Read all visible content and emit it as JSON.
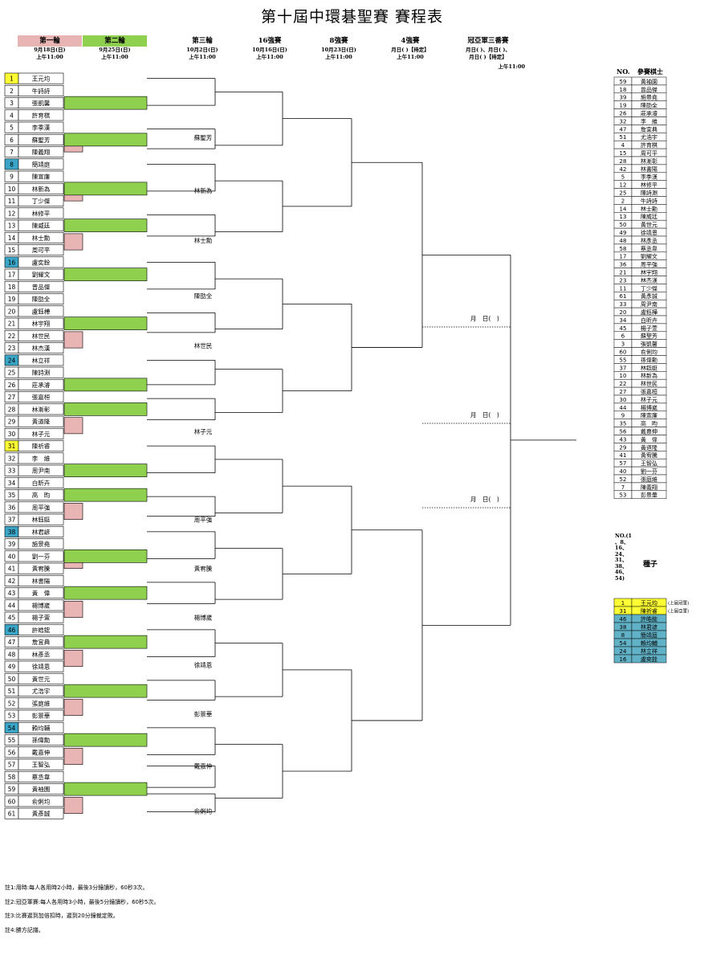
{
  "title": "第十屆中環碁聖賽 賽程表",
  "rounds": [
    {
      "label": "第一輪",
      "date": "9月18日(日)",
      "time": "上午11:00",
      "color": "#e8b4b4"
    },
    {
      "label": "第二輪",
      "date": "9月25日(日)",
      "time": "上午11:00",
      "color": "#8fd14f"
    },
    {
      "label": "第三輪",
      "date": "10月2日(日)",
      "time": "上午11:00",
      "color": ""
    },
    {
      "label": "16強賽",
      "date": "10月16日(日)",
      "time": "上午11:00",
      "color": ""
    },
    {
      "label": "8強賽",
      "date": "10月23日(日)",
      "time": "上午11:00",
      "color": ""
    },
    {
      "label": "4強賽",
      "date": "月日( )【待定】",
      "time": "上午11:00",
      "color": ""
    },
    {
      "label": "冠亞軍三番賽",
      "date": "月日( )、月日( )、",
      "time": "月日( )【待定】",
      "time2": "上午11:00",
      "color": ""
    }
  ],
  "players": [
    {
      "no": "1",
      "name": "王元均",
      "seed": "yellow"
    },
    {
      "no": "2",
      "name": "牛詩詩",
      "seed": ""
    },
    {
      "no": "3",
      "name": "張凱馨",
      "seed": ""
    },
    {
      "no": "4",
      "name": "許育棋",
      "seed": ""
    },
    {
      "no": "5",
      "name": "李季漢",
      "seed": ""
    },
    {
      "no": "6",
      "name": "蘇聖芳",
      "seed": ""
    },
    {
      "no": "7",
      "name": "陳義翔",
      "seed": ""
    },
    {
      "no": "8",
      "name": "簡靖庭",
      "seed": "blue"
    },
    {
      "no": "9",
      "name": "陳宣廉",
      "seed": ""
    },
    {
      "no": "10",
      "name": "林新為",
      "seed": ""
    },
    {
      "no": "11",
      "name": "丁少傑",
      "seed": ""
    },
    {
      "no": "12",
      "name": "林修平",
      "seed": ""
    },
    {
      "no": "13",
      "name": "陳威廷",
      "seed": ""
    },
    {
      "no": "14",
      "name": "林士勳",
      "seed": ""
    },
    {
      "no": "15",
      "name": "周可平",
      "seed": ""
    },
    {
      "no": "16",
      "name": "盧奕銓",
      "seed": "blue"
    },
    {
      "no": "17",
      "name": "劉耀文",
      "seed": ""
    },
    {
      "no": "18",
      "name": "曾品傑",
      "seed": ""
    },
    {
      "no": "19",
      "name": "陳劭全",
      "seed": ""
    },
    {
      "no": "20",
      "name": "盧鈺樺",
      "seed": ""
    },
    {
      "no": "21",
      "name": "林宇翔",
      "seed": ""
    },
    {
      "no": "22",
      "name": "林世民",
      "seed": ""
    },
    {
      "no": "23",
      "name": "林杰漢",
      "seed": ""
    },
    {
      "no": "24",
      "name": "林立祥",
      "seed": "blue"
    },
    {
      "no": "25",
      "name": "陳詩淵",
      "seed": ""
    },
    {
      "no": "26",
      "name": "莊承濬",
      "seed": ""
    },
    {
      "no": "27",
      "name": "張嘉桓",
      "seed": ""
    },
    {
      "no": "28",
      "name": "林漸彰",
      "seed": ""
    },
    {
      "no": "29",
      "name": "黃道隆",
      "seed": ""
    },
    {
      "no": "30",
      "name": "林子元",
      "seed": ""
    },
    {
      "no": "31",
      "name": "陳祈睿",
      "seed": "yellow"
    },
    {
      "no": "32",
      "name": "李　維",
      "seed": ""
    },
    {
      "no": "33",
      "name": "周尹南",
      "seed": ""
    },
    {
      "no": "34",
      "name": "白昕卉",
      "seed": ""
    },
    {
      "no": "35",
      "name": "高　昀",
      "seed": ""
    },
    {
      "no": "36",
      "name": "周平強",
      "seed": ""
    },
    {
      "no": "37",
      "name": "林鈺娗",
      "seed": ""
    },
    {
      "no": "38",
      "name": "林君諺",
      "seed": "blue"
    },
    {
      "no": "39",
      "name": "施景堯",
      "seed": ""
    },
    {
      "no": "40",
      "name": "劉一芬",
      "seed": ""
    },
    {
      "no": "41",
      "name": "黃宥騰",
      "seed": ""
    },
    {
      "no": "42",
      "name": "林書陽",
      "seed": ""
    },
    {
      "no": "43",
      "name": "黃　偉",
      "seed": ""
    },
    {
      "no": "44",
      "name": "楊博崴",
      "seed": ""
    },
    {
      "no": "45",
      "name": "楊子萱",
      "seed": ""
    },
    {
      "no": "46",
      "name": "許皓鋐",
      "seed": "blue"
    },
    {
      "no": "47",
      "name": "詹宜典",
      "seed": ""
    },
    {
      "no": "48",
      "name": "林彥丞",
      "seed": ""
    },
    {
      "no": "49",
      "name": "徐靖恩",
      "seed": ""
    },
    {
      "no": "50",
      "name": "黃世元",
      "seed": ""
    },
    {
      "no": "51",
      "name": "尤浩宇",
      "seed": ""
    },
    {
      "no": "52",
      "name": "張庭維",
      "seed": ""
    },
    {
      "no": "53",
      "name": "彭景華",
      "seed": ""
    },
    {
      "no": "54",
      "name": "賴均輔",
      "seed": "blue"
    },
    {
      "no": "55",
      "name": "孫偉勳",
      "seed": ""
    },
    {
      "no": "56",
      "name": "戴嘉伸",
      "seed": ""
    },
    {
      "no": "57",
      "name": "王智弘",
      "seed": ""
    },
    {
      "no": "58",
      "name": "蔡丞韋",
      "seed": ""
    },
    {
      "no": "59",
      "name": "黃袖園",
      "seed": ""
    },
    {
      "no": "60",
      "name": "俞俐均",
      "seed": ""
    },
    {
      "no": "61",
      "name": "黃彥誠",
      "seed": ""
    }
  ],
  "round3_winners": [
    "蘇聖芳",
    "林新為",
    "林士勳",
    "陳劭全",
    "林世民",
    "林子元",
    "周平強",
    "黃宥騰",
    "楊博崴",
    "徐靖恩",
    "彭景華",
    "戴嘉伸",
    "俞俐均"
  ],
  "match_date_labels": [
    "月　日(　)",
    "月　日(　)",
    "月　日(　)"
  ],
  "side_list": {
    "head_no": "NO.",
    "head_name": "參賽棋士",
    "rows": [
      [
        "59",
        "黃袖園"
      ],
      [
        "18",
        "曾品傑"
      ],
      [
        "39",
        "施景堯"
      ],
      [
        "19",
        "陳劭全"
      ],
      [
        "26",
        "莊承濬"
      ],
      [
        "32",
        "李　維"
      ],
      [
        "47",
        "詹宜典"
      ],
      [
        "51",
        "尤浩宇"
      ],
      [
        "4",
        "許育棋"
      ],
      [
        "15",
        "周可平"
      ],
      [
        "28",
        "林漸彰"
      ],
      [
        "42",
        "林書陽"
      ],
      [
        "5",
        "李季漢"
      ],
      [
        "12",
        "林修平"
      ],
      [
        "25",
        "陳詩淵"
      ],
      [
        "2",
        "牛詩詩"
      ],
      [
        "14",
        "林士勳"
      ],
      [
        "13",
        "陳威廷"
      ],
      [
        "50",
        "黃世元"
      ],
      [
        "49",
        "徐靖恩"
      ],
      [
        "48",
        "林彥丞"
      ],
      [
        "58",
        "蔡丞韋"
      ],
      [
        "17",
        "劉耀文"
      ],
      [
        "36",
        "周平強"
      ],
      [
        "21",
        "林宇翔"
      ],
      [
        "23",
        "林杰漢"
      ],
      [
        "11",
        "丁少傑"
      ],
      [
        "61",
        "黃彥誠"
      ],
      [
        "33",
        "周尹南"
      ],
      [
        "20",
        "盧鈺樺"
      ],
      [
        "34",
        "白昕卉"
      ],
      [
        "45",
        "楊子萱"
      ],
      [
        "6",
        "蘇聖芳"
      ],
      [
        "3",
        "張凱馨"
      ],
      [
        "60",
        "俞俐均"
      ],
      [
        "55",
        "孫偉勳"
      ],
      [
        "37",
        "林鈺娗"
      ],
      [
        "10",
        "林新為"
      ],
      [
        "22",
        "林世民"
      ],
      [
        "27",
        "張嘉桓"
      ],
      [
        "30",
        "林子元"
      ],
      [
        "44",
        "楊博崴"
      ],
      [
        "9",
        "陳宣廉"
      ],
      [
        "35",
        "高　昀"
      ],
      [
        "56",
        "戴嘉伸"
      ],
      [
        "43",
        "黃　偉"
      ],
      [
        "29",
        "黃道隆"
      ],
      [
        "41",
        "黃宥騰"
      ],
      [
        "57",
        "王智弘"
      ],
      [
        "40",
        "劉一芬"
      ],
      [
        "52",
        "張庭維"
      ],
      [
        "7",
        "陳義翔"
      ],
      [
        "53",
        "彭景華"
      ]
    ]
  },
  "seed_legend": {
    "no_text": [
      "NO.(1",
      "、8、",
      "16、",
      "24、",
      "31、",
      "38、",
      "46、",
      "54)"
    ],
    "label": "種子"
  },
  "seed_list": [
    {
      "no": "1",
      "name": "王元均",
      "note": "(上屆冠軍)",
      "color": "#ffff33"
    },
    {
      "no": "31",
      "name": "陳祈睿",
      "note": "(上屆亞軍)",
      "color": "#ffff33"
    },
    {
      "no": "46",
      "name": "許皓鋐",
      "note": "",
      "color": "#62b2c7"
    },
    {
      "no": "38",
      "name": "林君諺",
      "note": "",
      "color": "#62b2c7"
    },
    {
      "no": "8",
      "name": "簡靖庭",
      "note": "",
      "color": "#62b2c7"
    },
    {
      "no": "54",
      "name": "賴均輔",
      "note": "",
      "color": "#62b2c7"
    },
    {
      "no": "24",
      "name": "林立祥",
      "note": "",
      "color": "#62b2c7"
    },
    {
      "no": "16",
      "name": "盧奕銓",
      "note": "",
      "color": "#62b2c7"
    }
  ],
  "notes": [
    "註1:用時:每人各用時2小時，最後3分鐘讀秒，60秒3次。",
    "註2:冠亞軍賽:每人各用時3小時，最後5分鐘讀秒，60秒5次。",
    "註3:比賽遲到加倍扣時，遲到20分鐘裁定敗。",
    "註4:勝方記譜。"
  ],
  "colors": {
    "round1": "#e8b4b4",
    "round2": "#8fd14f",
    "seed_yellow": "#ffff33",
    "seed_blue": "#3aa5c6",
    "seed_blue_side": "#62b2c7"
  }
}
